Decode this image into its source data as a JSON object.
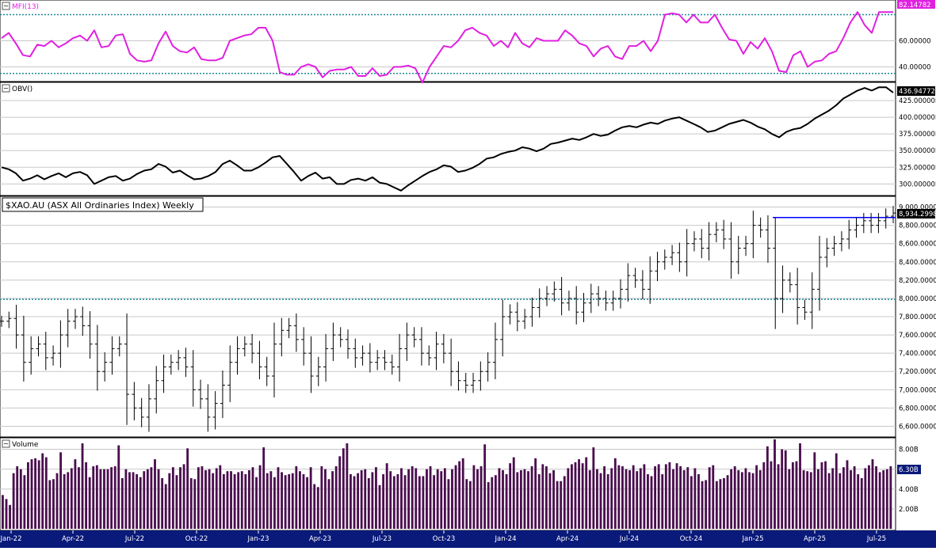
{
  "colors": {
    "mfi_line": "#e020e0",
    "obv_line": "#000000",
    "price_bar": "#000000",
    "volume_bar": "#4a0e4e",
    "threshold_line": "#1f8a9a",
    "resistance_line": "#0000ff",
    "grid": "#c8c8c8",
    "axis_band": "#0a1a7a",
    "axis_text": "#ffffff"
  },
  "chart_data": [
    {
      "id": "mfi",
      "type": "line",
      "title": "MFI(13)",
      "last_value_label": "82.14782",
      "ylim": [
        30,
        90
      ],
      "y_ticks": [
        40,
        60
      ],
      "y_tick_labels": [
        "40.00000",
        "60.00000"
      ],
      "thresholds": [
        80,
        35
      ],
      "grid": true,
      "values": [
        62,
        66,
        58,
        49,
        48,
        57,
        56,
        60,
        55,
        58,
        62,
        64,
        60,
        68,
        55,
        56,
        64,
        65,
        50,
        45,
        44,
        45,
        58,
        67,
        56,
        52,
        51,
        55,
        46,
        45,
        45,
        47,
        60,
        62,
        64,
        65,
        70,
        70,
        60,
        36,
        34,
        34,
        40,
        42,
        40,
        32,
        37,
        38,
        38,
        40,
        33,
        33,
        39,
        33,
        34,
        40,
        40,
        41,
        39,
        28,
        40,
        48,
        56,
        55,
        60,
        68,
        70,
        66,
        64,
        56,
        60,
        55,
        66,
        58,
        55,
        62,
        60,
        60,
        60,
        68,
        64,
        58,
        56,
        48,
        54,
        56,
        48,
        46,
        56,
        56,
        60,
        52,
        60,
        80,
        81,
        80,
        74,
        80,
        74,
        74,
        80,
        70,
        61,
        60,
        50,
        59,
        54,
        62,
        52,
        37,
        36,
        49,
        52,
        40,
        44,
        45,
        50,
        52,
        62,
        74,
        82,
        72,
        66,
        82,
        82,
        82
      ]
    },
    {
      "id": "obv",
      "type": "line",
      "title": "OBV()",
      "last_value_label": "436.94772B",
      "ylim": [
        285,
        450
      ],
      "y_ticks": [
        300,
        325,
        350,
        375,
        400,
        425
      ],
      "y_tick_labels": [
        "300.00000B",
        "325.00000B",
        "350.00000B",
        "375.00000B",
        "400.00000B",
        "425.00000B"
      ],
      "grid": true,
      "values": [
        325,
        322,
        316,
        305,
        308,
        313,
        307,
        312,
        316,
        310,
        316,
        318,
        313,
        300,
        305,
        310,
        312,
        305,
        308,
        315,
        320,
        322,
        330,
        326,
        317,
        320,
        313,
        307,
        308,
        312,
        318,
        330,
        335,
        328,
        320,
        320,
        325,
        332,
        340,
        342,
        330,
        318,
        305,
        312,
        317,
        308,
        310,
        300,
        300,
        306,
        308,
        305,
        310,
        302,
        300,
        295,
        290,
        298,
        305,
        312,
        318,
        322,
        328,
        326,
        318,
        320,
        324,
        330,
        338,
        340,
        345,
        348,
        350,
        355,
        353,
        349,
        353,
        360,
        362,
        365,
        368,
        366,
        370,
        375,
        372,
        374,
        380,
        385,
        387,
        385,
        389,
        392,
        390,
        395,
        398,
        400,
        395,
        390,
        385,
        378,
        380,
        385,
        390,
        393,
        396,
        392,
        386,
        382,
        375,
        370,
        378,
        382,
        384,
        390,
        398,
        404,
        410,
        418,
        428,
        434,
        440,
        444,
        440,
        445,
        445,
        437
      ]
    },
    {
      "id": "price",
      "type": "ohlc",
      "title": "$XAO.AU (ASX All Ordinaries Index) Weekly",
      "last_value_label": "8,934.2998",
      "ylim": [
        6500,
        9100
      ],
      "y_ticks": [
        6600,
        6800,
        7000,
        7200,
        7400,
        7600,
        7800,
        8000,
        8200,
        8400,
        8600,
        8800,
        9000
      ],
      "y_tick_labels": [
        "6,600.0000",
        "6,800.0000",
        "7,000.0000",
        "7,200.0000",
        "7,400.0000",
        "7,600.0000",
        "7,800.0000",
        "8,000.0000",
        "8,200.0000",
        "8,400.0000",
        "8,600.0000",
        "8,800.0000",
        "9,000.0000"
      ],
      "support_level": 7990,
      "resistance_level": 8885,
      "grid": true,
      "closes": [
        7750,
        7780,
        7600,
        7300,
        7450,
        7500,
        7350,
        7400,
        7600,
        7750,
        7800,
        7700,
        7500,
        7200,
        7300,
        7450,
        7500,
        6950,
        6800,
        6700,
        6900,
        7100,
        7250,
        7300,
        7350,
        7250,
        7000,
        6900,
        6700,
        6850,
        7050,
        7300,
        7450,
        7500,
        7400,
        7250,
        7150,
        7500,
        7650,
        7700,
        7550,
        7400,
        7150,
        7250,
        7450,
        7600,
        7550,
        7450,
        7350,
        7400,
        7300,
        7350,
        7300,
        7250,
        7450,
        7600,
        7550,
        7400,
        7350,
        7500,
        7400,
        7200,
        7100,
        7050,
        7100,
        7200,
        7300,
        7550,
        7800,
        7850,
        7750,
        7800,
        7900,
        8000,
        8050,
        8100,
        7950,
        8000,
        7850,
        7950,
        8050,
        8000,
        7950,
        8000,
        8100,
        8250,
        8200,
        8100,
        8300,
        8400,
        8450,
        8500,
        8400,
        8600,
        8650,
        8550,
        8700,
        8750,
        8650,
        8400,
        8550,
        8600,
        8800,
        8750,
        8550,
        8000,
        8200,
        8150,
        7900,
        7850,
        8100,
        8450,
        8550,
        8600,
        8650,
        8750,
        8800,
        8850,
        8800,
        8850,
        8900,
        8934.3
      ]
    },
    {
      "id": "volume",
      "type": "bar",
      "title": "Volume",
      "last_value_label": "6.30B",
      "ylim": [
        0,
        9.0
      ],
      "y_ticks": [
        2,
        4,
        6,
        8
      ],
      "y_tick_labels": [
        "2.00B",
        "4.00B",
        "6.00B",
        "8.00B"
      ],
      "grid": true,
      "values": [
        3.4,
        3.0,
        2.4,
        5.6,
        6.3,
        6.0,
        5.4,
        6.7,
        7.0,
        7.1,
        6.9,
        7.6,
        7.2,
        4.9,
        5.0,
        5.6,
        7.7,
        5.5,
        5.7,
        6.1,
        7.0,
        6.2,
        8.6,
        6.7,
        5.2,
        6.3,
        6.4,
        6.0,
        6.0,
        6.0,
        6.2,
        6.3,
        8.4,
        5.1,
        6.0,
        5.7,
        5.7,
        5.5,
        5.2,
        5.8,
        6.0,
        6.2,
        7.0,
        6.0,
        5.1,
        4.5,
        5.6,
        6.2,
        5.4,
        6.2,
        6.5,
        8.1,
        5.1,
        5.0,
        6.2,
        6.3,
        5.9,
        6.0,
        5.6,
        6.1,
        6.4,
        5.5,
        5.8,
        5.8,
        5.5,
        5.7,
        5.8,
        5.5,
        5.9,
        6.2,
        5.2,
        6.4,
        8.2,
        5.6,
        5.8,
        5.2,
        6.2,
        5.7,
        5.4,
        5.5,
        5.6,
        6.3,
        5.8,
        5.5,
        5.2,
        6.2,
        4.5,
        4.2,
        6.3,
        6.0,
        5.0,
        5.8,
        6.3,
        7.3,
        8.1,
        8.6,
        5.5,
        5.3,
        5.6,
        5.9,
        6.0,
        5.1,
        5.7,
        6.2,
        4.4,
        5.5,
        6.6,
        5.8,
        5.3,
        5.5,
        6.1,
        5.4,
        6.0,
        6.3,
        6.1,
        5.3,
        5.3,
        6.0,
        6.3,
        5.4,
        6.0,
        5.8,
        6.1,
        5.0,
        6.0,
        6.4,
        6.8,
        7.1,
        5.0,
        4.8,
        6.4,
        6.0,
        6.3,
        8.5,
        4.7,
        5.2,
        5.4,
        6.1,
        5.9,
        5.5,
        6.6,
        7.2,
        5.7,
        5.9,
        6.0,
        5.8,
        6.3,
        7.1,
        5.5,
        6.5,
        6.3,
        5.6,
        5.9,
        4.8,
        4.8,
        5.3,
        6.1,
        6.5,
        6.7,
        7.0,
        6.6,
        7.2,
        5.9,
        8.2,
        6.0,
        5.6,
        6.3,
        5.5,
        6.1,
        7.1,
        6.4,
        6.3,
        6.0,
        5.9,
        6.4,
        5.8,
        6.1,
        6.5,
        5.5,
        5.3,
        6.3,
        6.5,
        5.5,
        6.5,
        6.7,
        6.0,
        6.6,
        6.3,
        5.9,
        6.2,
        5.3,
        6.1,
        5.5,
        4.8,
        4.9,
        6.2,
        6.4,
        4.8,
        5.0,
        5.1,
        5.4,
        6.0,
        6.3,
        5.9,
        5.7,
        6.1,
        5.7,
        5.6,
        6.4,
        5.9,
        6.7,
        8.3,
        6.8,
        9.0,
        6.5,
        8.0,
        7.9,
        6.0,
        6.7,
        6.8,
        8.6,
        5.9,
        5.8,
        5.7,
        7.7,
        6.0,
        6.7,
        6.8,
        5.6,
        6.1,
        7.6,
        5.6,
        6.2,
        6.9,
        5.9,
        6.3,
        5.5,
        5.1,
        6.1,
        6.4,
        7.0,
        6.3,
        5.7,
        5.9,
        6.0,
        6.3
      ]
    }
  ],
  "x_axis": {
    "labels": [
      "Jan-22",
      "Apr-22",
      "Jul-22",
      "Oct-22",
      "Jan-23",
      "Apr-23",
      "Jul-23",
      "Oct-23",
      "Jan-24",
      "Apr-24",
      "Jul-24",
      "Oct-24",
      "Jan-25",
      "Apr-25",
      "Jul-25"
    ]
  }
}
